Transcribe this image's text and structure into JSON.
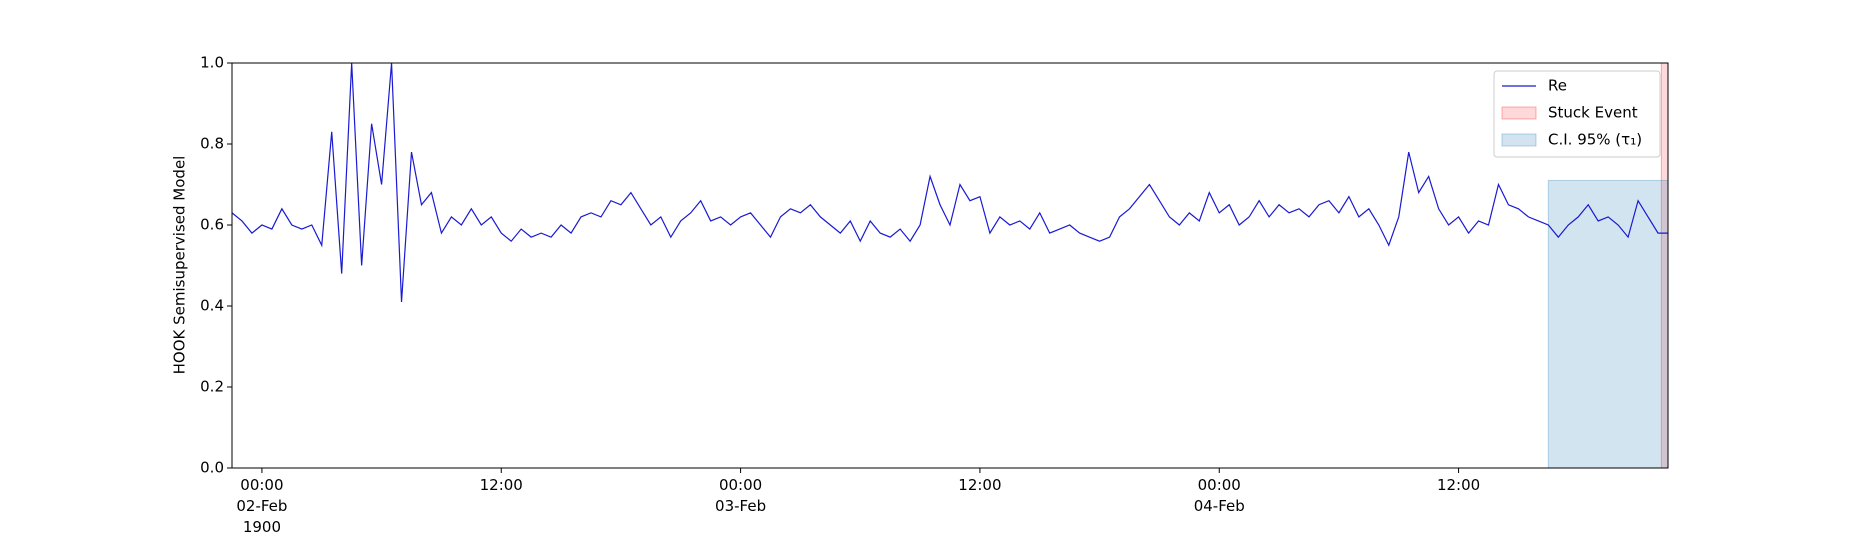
{
  "chart_data": {
    "type": "line",
    "ylabel": "HOOK Semisupervised Model",
    "x": [
      "1900-02-01 22:30",
      "1900-02-01 23:00",
      "1900-02-01 23:30",
      "1900-02-02 00:00",
      "1900-02-02 00:30",
      "1900-02-02 01:00",
      "1900-02-02 01:30",
      "1900-02-02 02:00",
      "1900-02-02 02:30",
      "1900-02-02 03:00",
      "1900-02-02 03:30",
      "1900-02-02 04:00",
      "1900-02-02 04:30",
      "1900-02-02 05:00",
      "1900-02-02 05:30",
      "1900-02-02 06:00",
      "1900-02-02 06:30",
      "1900-02-02 07:00",
      "1900-02-02 07:30",
      "1900-02-02 08:00",
      "1900-02-02 08:30",
      "1900-02-02 09:00",
      "1900-02-02 09:30",
      "1900-02-02 10:00",
      "1900-02-02 10:30",
      "1900-02-02 11:00",
      "1900-02-02 11:30",
      "1900-02-02 12:00",
      "1900-02-02 12:30",
      "1900-02-02 13:00",
      "1900-02-02 13:30",
      "1900-02-02 14:00",
      "1900-02-02 14:30",
      "1900-02-02 15:00",
      "1900-02-02 15:30",
      "1900-02-02 16:00",
      "1900-02-02 16:30",
      "1900-02-02 17:00",
      "1900-02-02 17:30",
      "1900-02-02 18:00",
      "1900-02-02 18:30",
      "1900-02-02 19:00",
      "1900-02-02 19:30",
      "1900-02-02 20:00",
      "1900-02-02 20:30",
      "1900-02-02 21:00",
      "1900-02-02 21:30",
      "1900-02-02 22:00",
      "1900-02-02 22:30",
      "1900-02-02 23:00",
      "1900-02-02 23:30",
      "1900-02-03 00:00",
      "1900-02-03 00:30",
      "1900-02-03 01:00",
      "1900-02-03 01:30",
      "1900-02-03 02:00",
      "1900-02-03 02:30",
      "1900-02-03 03:00",
      "1900-02-03 03:30",
      "1900-02-03 04:00",
      "1900-02-03 04:30",
      "1900-02-03 05:00",
      "1900-02-03 05:30",
      "1900-02-03 06:00",
      "1900-02-03 06:30",
      "1900-02-03 07:00",
      "1900-02-03 07:30",
      "1900-02-03 08:00",
      "1900-02-03 08:30",
      "1900-02-03 09:00",
      "1900-02-03 09:30",
      "1900-02-03 10:00",
      "1900-02-03 10:30",
      "1900-02-03 11:00",
      "1900-02-03 11:30",
      "1900-02-03 12:00",
      "1900-02-03 12:30",
      "1900-02-03 13:00",
      "1900-02-03 13:30",
      "1900-02-03 14:00",
      "1900-02-03 14:30",
      "1900-02-03 15:00",
      "1900-02-03 15:30",
      "1900-02-03 16:00",
      "1900-02-03 16:30",
      "1900-02-03 17:00",
      "1900-02-03 17:30",
      "1900-02-03 18:00",
      "1900-02-03 18:30",
      "1900-02-03 19:00",
      "1900-02-03 19:30",
      "1900-02-03 20:00",
      "1900-02-03 20:30",
      "1900-02-03 21:00",
      "1900-02-03 21:30",
      "1900-02-03 22:00",
      "1900-02-03 22:30",
      "1900-02-03 23:00",
      "1900-02-03 23:30",
      "1900-02-04 00:00",
      "1900-02-04 00:30",
      "1900-02-04 01:00",
      "1900-02-04 01:30",
      "1900-02-04 02:00",
      "1900-02-04 02:30",
      "1900-02-04 03:00",
      "1900-02-04 03:30",
      "1900-02-04 04:00",
      "1900-02-04 04:30",
      "1900-02-04 05:00",
      "1900-02-04 05:30",
      "1900-02-04 06:00",
      "1900-02-04 06:30",
      "1900-02-04 07:00",
      "1900-02-04 07:30",
      "1900-02-04 08:00",
      "1900-02-04 08:30",
      "1900-02-04 09:00",
      "1900-02-04 09:30",
      "1900-02-04 10:00",
      "1900-02-04 10:30",
      "1900-02-04 11:00",
      "1900-02-04 11:30",
      "1900-02-04 12:00",
      "1900-02-04 12:30",
      "1900-02-04 13:00",
      "1900-02-04 13:30",
      "1900-02-04 14:00",
      "1900-02-04 14:30",
      "1900-02-04 15:00",
      "1900-02-04 15:30",
      "1900-02-04 16:00",
      "1900-02-04 16:30",
      "1900-02-04 17:00",
      "1900-02-04 17:30",
      "1900-02-04 18:00",
      "1900-02-04 18:30",
      "1900-02-04 19:00",
      "1900-02-04 19:30",
      "1900-02-04 20:00",
      "1900-02-04 20:30",
      "1900-02-04 21:00",
      "1900-02-04 21:30",
      "1900-02-04 22:00",
      "1900-02-04 22:30"
    ],
    "series": [
      {
        "name": "Re",
        "color": "#1a1ad2",
        "values": [
          0.63,
          0.61,
          0.58,
          0.6,
          0.59,
          0.64,
          0.6,
          0.59,
          0.6,
          0.55,
          0.83,
          0.48,
          1.0,
          0.5,
          0.85,
          0.7,
          1.0,
          0.41,
          0.78,
          0.65,
          0.68,
          0.58,
          0.62,
          0.6,
          0.64,
          0.6,
          0.62,
          0.58,
          0.56,
          0.59,
          0.57,
          0.58,
          0.57,
          0.6,
          0.58,
          0.62,
          0.63,
          0.62,
          0.66,
          0.65,
          0.68,
          0.64,
          0.6,
          0.62,
          0.57,
          0.61,
          0.63,
          0.66,
          0.61,
          0.62,
          0.6,
          0.62,
          0.63,
          0.6,
          0.57,
          0.62,
          0.64,
          0.63,
          0.65,
          0.62,
          0.6,
          0.58,
          0.61,
          0.56,
          0.61,
          0.58,
          0.57,
          0.59,
          0.56,
          0.6,
          0.72,
          0.65,
          0.6,
          0.7,
          0.66,
          0.67,
          0.58,
          0.62,
          0.6,
          0.61,
          0.59,
          0.63,
          0.58,
          0.59,
          0.6,
          0.58,
          0.57,
          0.56,
          0.57,
          0.62,
          0.64,
          0.67,
          0.7,
          0.66,
          0.62,
          0.6,
          0.63,
          0.61,
          0.68,
          0.63,
          0.65,
          0.6,
          0.62,
          0.66,
          0.62,
          0.65,
          0.63,
          0.64,
          0.62,
          0.65,
          0.66,
          0.63,
          0.67,
          0.62,
          0.64,
          0.6,
          0.55,
          0.62,
          0.78,
          0.68,
          0.72,
          0.64,
          0.6,
          0.62,
          0.58,
          0.61,
          0.6,
          0.7,
          0.65,
          0.64,
          0.62,
          0.61,
          0.6,
          0.57,
          0.6,
          0.62,
          0.65,
          0.61,
          0.62,
          0.6,
          0.57,
          0.66,
          0.62,
          0.58,
          0.58
        ]
      }
    ],
    "spans": [
      {
        "name": "Stuck Event",
        "color": "#ff0000",
        "x0": "1900-02-04 22:10",
        "x1": "1900-02-04 22:30",
        "y0": 0,
        "y1": 1
      },
      {
        "name": "C.I. 95% (τ₁)",
        "color": "#1f77b4",
        "x0": "1900-02-04 16:30",
        "x1": "1900-02-04 22:30",
        "y0": 0,
        "y1": 0.71
      }
    ],
    "xlim": [
      "1900-02-01 22:30",
      "1900-02-04 22:30"
    ],
    "xticks": [
      {
        "value": "1900-02-02 00:00",
        "label": "00:00\n02-Feb\n1900"
      },
      {
        "value": "1900-02-02 12:00",
        "label": "12:00"
      },
      {
        "value": "1900-02-03 00:00",
        "label": "00:00\n03-Feb"
      },
      {
        "value": "1900-02-03 12:00",
        "label": "12:00"
      },
      {
        "value": "1900-02-04 00:00",
        "label": "00:00\n04-Feb"
      },
      {
        "value": "1900-02-04 12:00",
        "label": "12:00"
      }
    ],
    "ylim": [
      0,
      1
    ],
    "yticks": [
      {
        "value": 0,
        "label": "0.0"
      },
      0.2,
      0.4,
      0.6,
      0.8,
      {
        "value": 1,
        "label": "1.0"
      }
    ],
    "legend": "upper right"
  }
}
